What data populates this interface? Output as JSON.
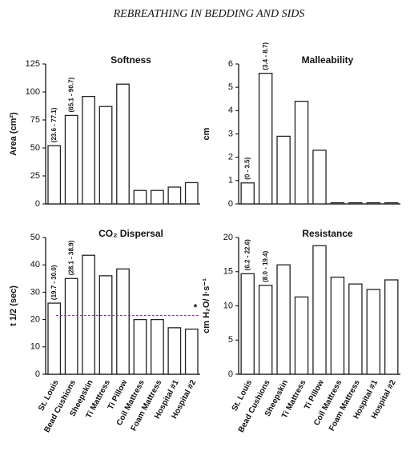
{
  "title": "REBREATHING IN BEDDING AND SIDS",
  "chart_data": [
    {
      "type": "bar",
      "title": "Softness",
      "y_label": "Area (cm²)",
      "values": [
        52,
        79,
        96,
        87,
        107,
        12,
        12,
        15,
        19
      ],
      "annotations": [
        "(23.6 - 77.1)",
        "(65.1 - 90.7)"
      ],
      "ylim": [
        0,
        125
      ],
      "yticks": [
        0,
        25,
        50,
        75,
        100,
        125
      ],
      "color": "#ffffff"
    },
    {
      "type": "bar",
      "title": "Malleability",
      "y_label": "cm",
      "values": [
        0.9,
        5.6,
        2.9,
        4.4,
        2.3,
        0.05,
        0.05,
        0.05,
        0.05
      ],
      "annotations": [
        "(0 - 3.5)",
        "(3.4 - 8.7)"
      ],
      "ylim": [
        0,
        6
      ],
      "yticks": [
        0,
        1,
        2,
        3,
        4,
        5,
        6
      ],
      "color": "#ffffff"
    },
    {
      "type": "bar",
      "title": "CO₂ Dispersal",
      "y_label": "t 1/2 (sec)",
      "categories": [
        "St. Louis",
        "Bead Cushions",
        "Sheepskin",
        "Ti Mattress",
        "Ti Pillow",
        "Coil Mattress",
        "Foam Mattress",
        "Hospital #1",
        "Hospital #2"
      ],
      "values": [
        26,
        35,
        43.5,
        36,
        38.5,
        20,
        20,
        17,
        16.5
      ],
      "annotations": [
        "(19.7 - 30.0)",
        "(28.1 - 38.9)"
      ],
      "reference_line": 21.5,
      "reference_label": "*",
      "ylim": [
        0,
        50
      ],
      "yticks": [
        0,
        10,
        20,
        30,
        40,
        50
      ],
      "color": "#ffffff"
    },
    {
      "type": "bar",
      "title": "Resistance",
      "y_label": "cm H₂O/ l·s⁻¹",
      "categories": [
        "St. Louis",
        "Bead Cushions",
        "Sheepskin",
        "Ti Mattress",
        "Ti Pillow",
        "Coil Mattress",
        "Foam Mattress",
        "Hospital #1",
        "Hospital #2"
      ],
      "values": [
        14.7,
        13,
        16,
        11.3,
        18.8,
        14.2,
        13.2,
        12.4,
        13.8
      ],
      "annotations": [
        "(6.2 - 22.6)",
        "(8.0 - 19.4)"
      ],
      "ylim": [
        0,
        20
      ],
      "yticks": [
        0,
        5,
        10,
        15,
        20
      ],
      "color": "#ffffff"
    }
  ]
}
